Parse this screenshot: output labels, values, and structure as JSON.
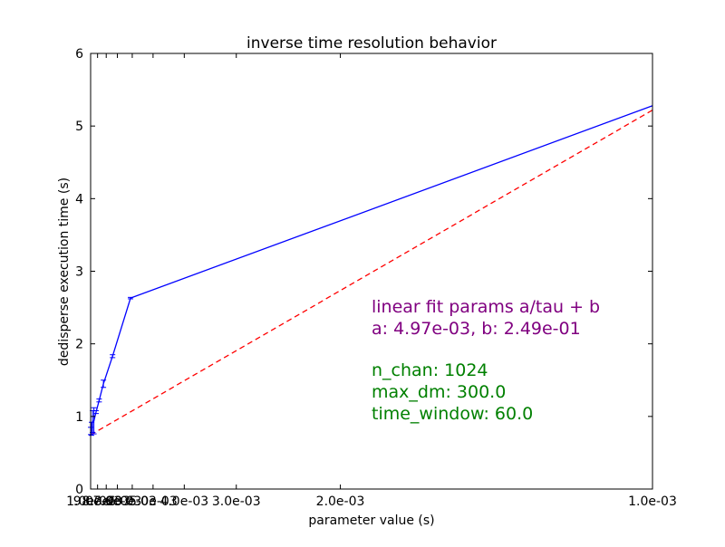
{
  "chart_data": {
    "type": "line",
    "title": "inverse time resolution behavior",
    "xlabel": "parameter value (s)",
    "ylabel": "dedisperse execution time (s)",
    "x_axis_note": "x is linear in 1/tau; tick labels show tau",
    "xlim_tau": [
      0.01,
      0.001
    ],
    "ylim": [
      0,
      6
    ],
    "x_ticks_tau": [
      0.01,
      0.009,
      0.008,
      0.007,
      0.006,
      0.005,
      0.004,
      0.003,
      0.002,
      0.001
    ],
    "x_tick_labels": [
      "1.0e-02",
      "9.0e-03",
      "8.0e-03",
      "7.0e-03",
      "6.0e-03",
      "5.0e-03",
      "4.0e-03",
      "3.0e-03",
      "2.0e-03",
      "1.0e-03"
    ],
    "y_ticks": [
      0,
      1,
      2,
      3,
      4,
      5,
      6
    ],
    "y_tick_labels": [
      "0",
      "1",
      "2",
      "3",
      "4",
      "5",
      "6"
    ],
    "grid": false,
    "series": [
      {
        "color": "#0000ff",
        "style": "solid",
        "error_bars": true,
        "points": [
          {
            "tau": 0.01,
            "y": 0.8,
            "err": 0.05
          },
          {
            "tau": 0.00985,
            "y": 0.83,
            "err": 0.09
          },
          {
            "tau": 0.0097,
            "y": 0.93,
            "err": 0.15
          },
          {
            "tau": 0.0095,
            "y": 0.94,
            "err": 0.18
          },
          {
            "tau": 0.0092,
            "y": 1.06,
            "err": 0.02
          },
          {
            "tau": 0.0088,
            "y": 1.22,
            "err": 0.02
          },
          {
            "tau": 0.0083,
            "y": 1.45,
            "err": 0.05
          },
          {
            "tau": 0.0074,
            "y": 1.83,
            "err": 0.02
          },
          {
            "tau": 0.0061,
            "y": 2.63,
            "err": 0.01
          },
          {
            "tau": 0.001,
            "y": 5.28,
            "err": 0.0
          }
        ]
      },
      {
        "color": "#ff0000",
        "style": "dashed",
        "fit": {
          "a": 0.00497,
          "b": 0.249
        }
      }
    ],
    "annotations": [
      {
        "lines": [
          "linear fit params a/tau + b",
          "a: 4.97e-03, b: 2.49e-01"
        ],
        "color": "#800080"
      },
      {
        "lines": [
          "n_chan: 1024",
          "max_dm: 300.0",
          "time_window: 60.0"
        ],
        "color": "#008000"
      }
    ]
  }
}
